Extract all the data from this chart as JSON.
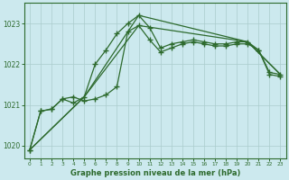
{
  "xlabel": "Graphe pression niveau de la mer (hPa)",
  "xlim": [
    -0.5,
    23.5
  ],
  "ylim": [
    1019.7,
    1023.5
  ],
  "yticks": [
    1020,
    1021,
    1022,
    1023
  ],
  "xticks": [
    0,
    1,
    2,
    3,
    4,
    5,
    6,
    7,
    8,
    9,
    10,
    11,
    12,
    13,
    14,
    15,
    16,
    17,
    18,
    19,
    20,
    21,
    22,
    23
  ],
  "bg_color": "#cce9ee",
  "line_color": "#2d6a2d",
  "grid_color": "#aacccc",
  "line1_x": [
    0,
    1,
    2,
    3,
    4,
    5,
    6,
    7,
    8,
    9,
    10,
    11,
    12,
    13,
    14,
    15,
    16,
    17,
    18,
    19,
    20,
    21,
    22,
    23
  ],
  "line1_y": [
    1019.9,
    1020.85,
    1020.9,
    1021.15,
    1021.05,
    1021.2,
    1022.0,
    1022.35,
    1022.75,
    1023.0,
    1023.2,
    1022.9,
    1022.4,
    1022.5,
    1022.55,
    1022.6,
    1022.55,
    1022.5,
    1022.5,
    1022.55,
    1022.55,
    1022.35,
    1021.8,
    1021.75
  ],
  "line2_x": [
    0,
    1,
    2,
    3,
    4,
    5,
    6,
    7,
    8,
    9,
    10,
    11,
    12,
    13,
    14,
    15,
    16,
    17,
    18,
    19,
    20,
    21,
    22,
    23
  ],
  "line2_y": [
    1019.9,
    1020.85,
    1020.9,
    1021.15,
    1021.2,
    1021.1,
    1021.15,
    1021.25,
    1021.45,
    1022.8,
    1022.95,
    1022.6,
    1022.3,
    1022.4,
    1022.5,
    1022.55,
    1022.5,
    1022.45,
    1022.45,
    1022.5,
    1022.5,
    1022.35,
    1021.75,
    1021.7
  ],
  "line3_x": [
    0,
    5,
    10,
    20,
    23
  ],
  "line3_y": [
    1019.9,
    1021.2,
    1023.2,
    1022.55,
    1021.75
  ],
  "line4_x": [
    0,
    5,
    10,
    20,
    23
  ],
  "line4_y": [
    1019.9,
    1021.2,
    1022.95,
    1022.55,
    1021.75
  ]
}
